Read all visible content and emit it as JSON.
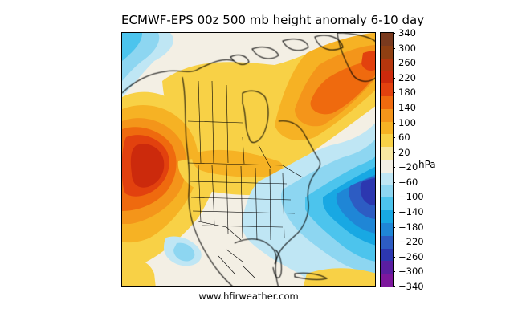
{
  "title": "ECMWF-EPS 00z 500 mb height anomaly 6-10 day",
  "source": "www.hfirweather.com",
  "colorbar": {
    "unit": "hPa",
    "tick_labels": [
      "340",
      "300",
      "260",
      "220",
      "180",
      "140",
      "100",
      "60",
      "20",
      "−20",
      "−60",
      "−100",
      "−140",
      "−180",
      "−220",
      "−260",
      "−300",
      "−340"
    ],
    "colors": [
      "#7a3a1e",
      "#8f3f12",
      "#b5360d",
      "#cc2a0c",
      "#e2410e",
      "#ef6a0e",
      "#f4951a",
      "#f6b224",
      "#f8d146",
      "#f7e7a1",
      "#f3efe4",
      "#bfe6f4",
      "#8dd6f1",
      "#4cc4ed",
      "#18a8e3",
      "#1f86d6",
      "#2d5cc3",
      "#2c37b0",
      "#5a1ea1",
      "#7d179d"
    ]
  },
  "map": {
    "region": "North America",
    "features": {
      "ridge_center": "west coast",
      "trough_center": "east of New England",
      "secondary_ridge": "Hudson Bay / northeastern Canada"
    }
  }
}
